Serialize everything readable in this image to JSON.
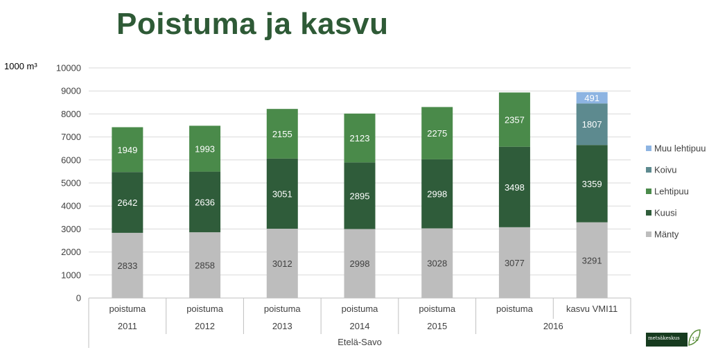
{
  "title": "Poistuma ja kasvu",
  "unit_label": "1000 m³",
  "logo_text": "metsäkeskus",
  "logo_mark_text": "10",
  "colors": {
    "Mänty": "#bdbdbd",
    "Kuusi": "#2f5c3a",
    "Lehtipuu": "#4a8a4a",
    "Koivu": "#5d8a8f",
    "Muu lehtipuu": "#8db4e2"
  },
  "chart_data": {
    "type": "bar",
    "stacked": true,
    "ylim": [
      0,
      10000
    ],
    "yticks": [
      "0",
      "1000",
      "2000",
      "3000",
      "4000",
      "5000",
      "6000",
      "7000",
      "8000",
      "9000",
      "10000"
    ],
    "categories": [
      {
        "label": "poistuma",
        "year": "2011"
      },
      {
        "label": "poistuma",
        "year": "2012"
      },
      {
        "label": "poistuma",
        "year": "2013"
      },
      {
        "label": "poistuma",
        "year": "2014"
      },
      {
        "label": "poistuma",
        "year": "2015"
      },
      {
        "label": "poistuma",
        "year": "2016"
      },
      {
        "label": "kasvu VMI11",
        "year": "2016"
      }
    ],
    "year_groups": [
      {
        "label": "2011",
        "span": 1
      },
      {
        "label": "2012",
        "span": 1
      },
      {
        "label": "2013",
        "span": 1
      },
      {
        "label": "2014",
        "span": 1
      },
      {
        "label": "2015",
        "span": 1
      },
      {
        "label": "2016",
        "span": 2
      }
    ],
    "region": "Etelä-Savo",
    "series": [
      {
        "name": "Mänty",
        "values": [
          2833,
          2858,
          3012,
          2998,
          3028,
          3077,
          3291
        ]
      },
      {
        "name": "Kuusi",
        "values": [
          2642,
          2636,
          3051,
          2895,
          2998,
          3498,
          3359
        ]
      },
      {
        "name": "Lehtipuu",
        "values": [
          1949,
          1993,
          2155,
          2123,
          2275,
          2357,
          null
        ]
      },
      {
        "name": "Koivu",
        "values": [
          null,
          null,
          null,
          null,
          null,
          null,
          1807
        ]
      },
      {
        "name": "Muu lehtipuu",
        "values": [
          null,
          null,
          null,
          null,
          null,
          null,
          491
        ]
      }
    ],
    "legend_order": [
      "Muu lehtipuu",
      "Koivu",
      "Lehtipuu",
      "Kuusi",
      "Mänty"
    ],
    "legend_position": "right",
    "grid": true
  }
}
